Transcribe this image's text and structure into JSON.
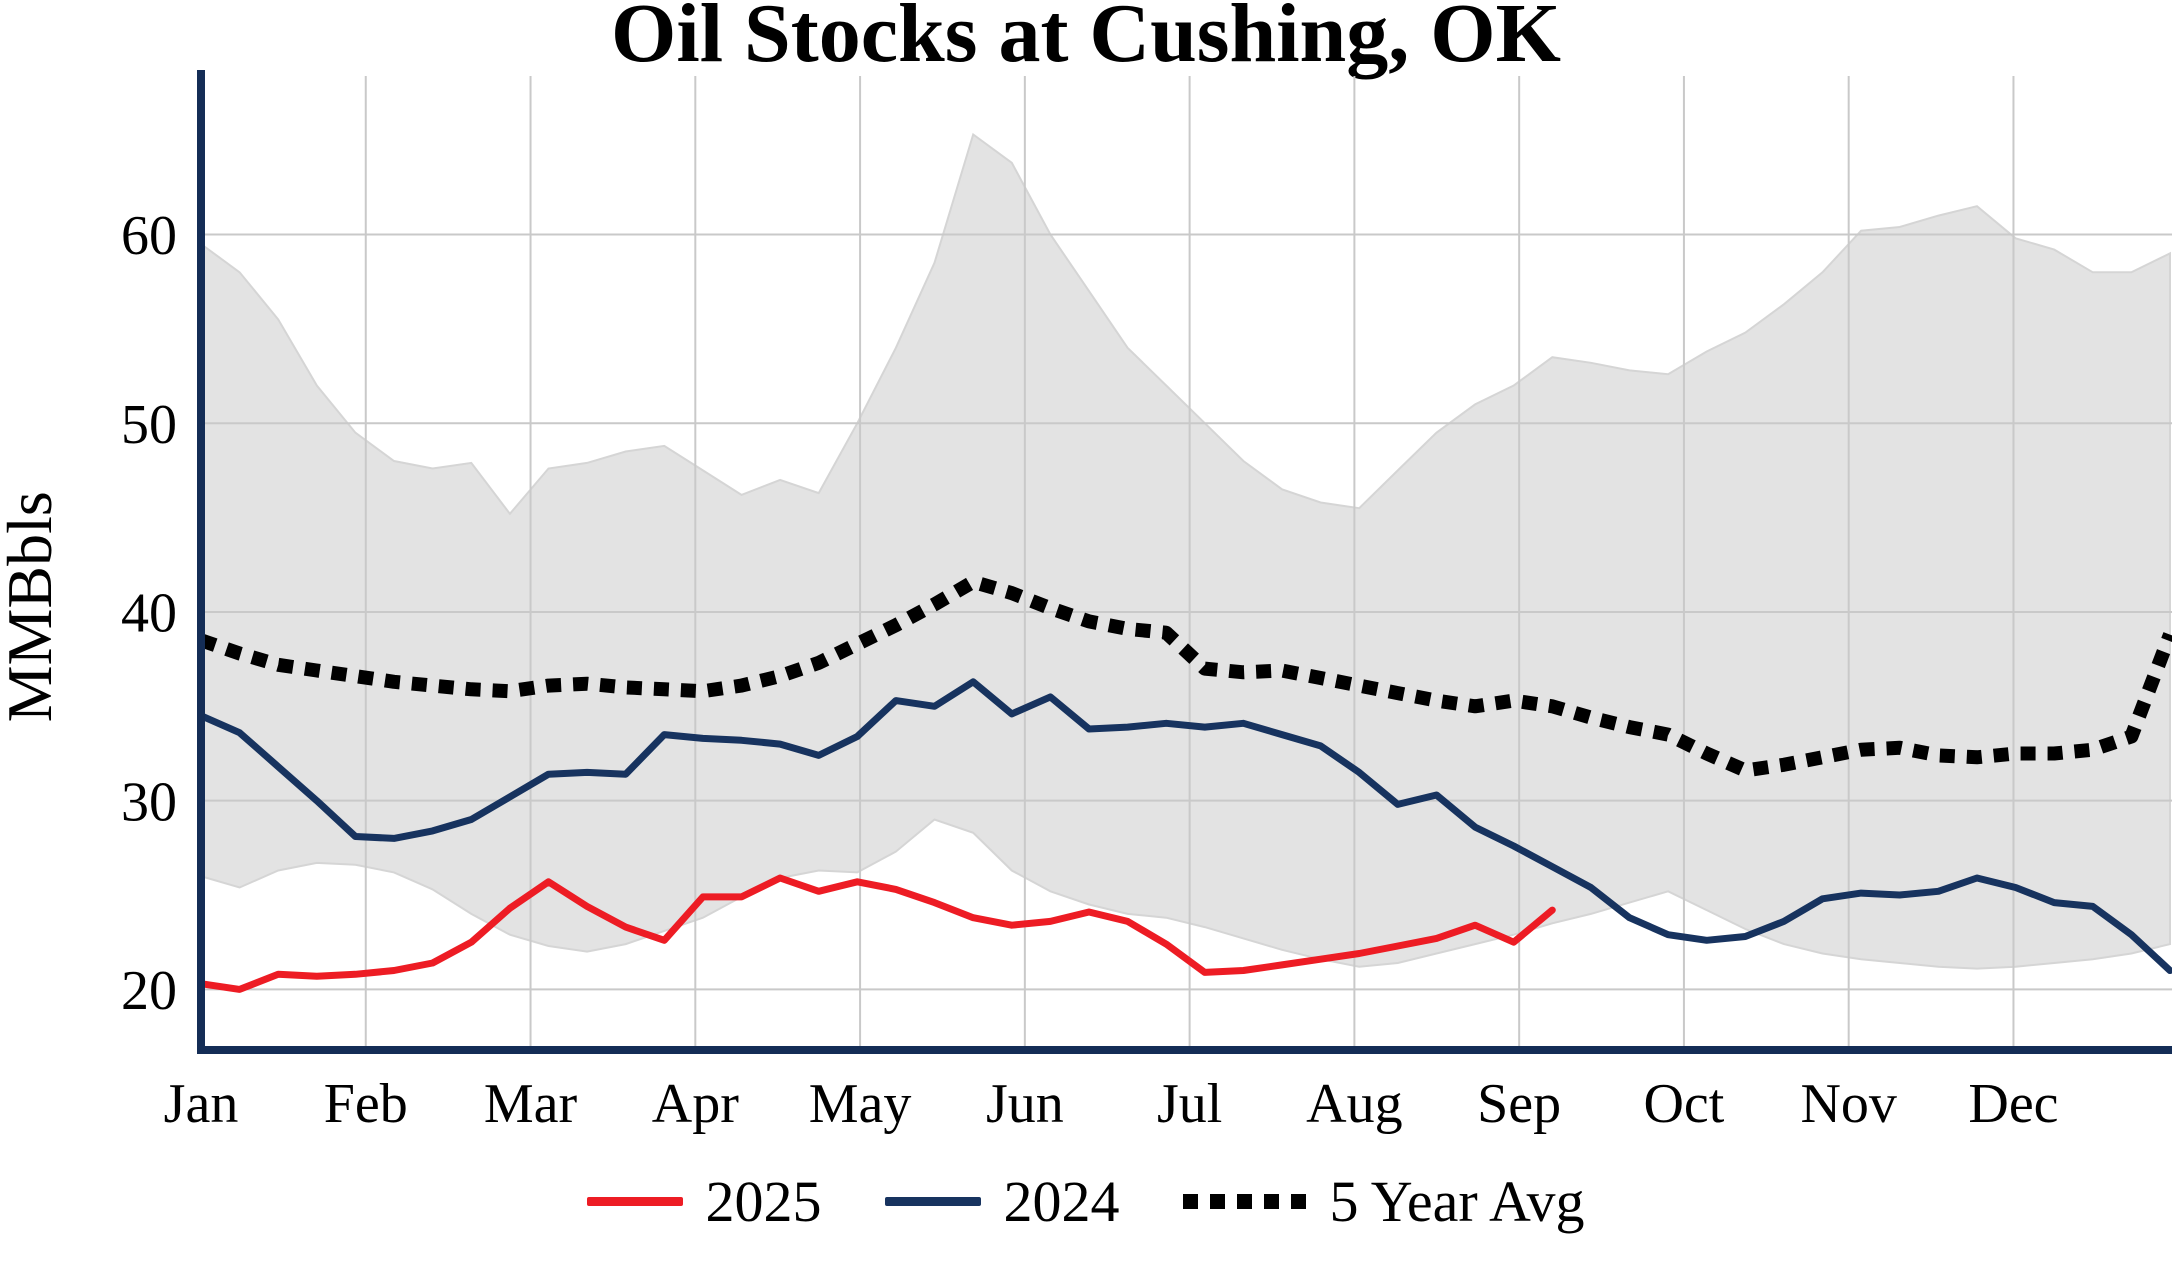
{
  "chart_data": {
    "type": "line",
    "title": "Oil Stocks at Cushing, OK",
    "ylabel": "MMBbls",
    "x_tick_labels": [
      "Jan",
      "Feb",
      "Mar",
      "Apr",
      "May",
      "Jun",
      "Jul",
      "Aug",
      "Sep",
      "Oct",
      "Nov",
      "Dec"
    ],
    "y_ticks": [
      20,
      30,
      40,
      50,
      60
    ],
    "ylim": [
      17,
      68.4
    ],
    "x_domain_months": [
      0,
      11.95
    ],
    "x_step_months": 0.234314,
    "grid": "on",
    "legend_position": "bottom",
    "colors": {
      "grid": "#c9c9c9",
      "axis": "#142d56",
      "band_fill": "#e3e3e3",
      "band_stroke": "#d5d5d5",
      "tick_text": "#000000"
    },
    "band": {
      "name": "5-year range",
      "upper": [
        59.5,
        58.0,
        55.5,
        52.0,
        49.5,
        48.0,
        47.6,
        47.9,
        45.2,
        47.6,
        47.9,
        48.5,
        48.8,
        47.5,
        46.2,
        47.0,
        46.3,
        50.0,
        54.0,
        58.5,
        65.3,
        63.8,
        60.0,
        57.0,
        54.0,
        52.0,
        50.0,
        48.0,
        46.5,
        45.8,
        45.5,
        47.5,
        49.5,
        51.0,
        52.0,
        53.5,
        53.2,
        52.8,
        52.6,
        53.8,
        54.8,
        56.3,
        58.0,
        60.2,
        60.4,
        61.0,
        61.5,
        59.8,
        59.2,
        58.0,
        58.0,
        59.0
      ],
      "lower": [
        26.0,
        25.4,
        26.3,
        26.7,
        26.6,
        26.2,
        25.3,
        24.0,
        22.9,
        22.3,
        22.0,
        22.4,
        23.1,
        23.8,
        24.9,
        25.9,
        26.3,
        26.2,
        27.3,
        29.0,
        28.3,
        26.3,
        25.2,
        24.5,
        24.0,
        23.8,
        23.3,
        22.7,
        22.1,
        21.6,
        21.2,
        21.4,
        21.9,
        22.4,
        22.9,
        23.5,
        24.0,
        24.6,
        25.2,
        24.2,
        23.2,
        22.4,
        21.9,
        21.6,
        21.4,
        21.2,
        21.1,
        21.2,
        21.4,
        21.6,
        21.9,
        22.4
      ]
    },
    "series": [
      {
        "name": "2025",
        "color": "#ed1c24",
        "style": "solid",
        "values": [
          20.3,
          20.0,
          20.8,
          20.7,
          20.8,
          21.0,
          21.4,
          22.5,
          24.3,
          25.7,
          24.4,
          23.3,
          22.6,
          24.9,
          24.9,
          25.9,
          25.2,
          25.7,
          25.3,
          24.6,
          23.8,
          23.4,
          23.6,
          24.1,
          23.6,
          22.4,
          20.9,
          21.0,
          21.3,
          21.6,
          21.9,
          22.3,
          22.7,
          23.4,
          22.5,
          24.2
        ]
      },
      {
        "name": "2024",
        "color": "#17335f",
        "style": "solid",
        "values": [
          34.5,
          33.6,
          31.8,
          30.0,
          28.1,
          28.0,
          28.4,
          29.0,
          30.2,
          31.4,
          31.5,
          31.4,
          33.5,
          33.3,
          33.2,
          33.0,
          32.4,
          33.4,
          35.3,
          35.0,
          36.3,
          34.6,
          35.5,
          33.8,
          33.9,
          34.1,
          33.9,
          34.1,
          33.5,
          32.9,
          31.5,
          29.8,
          30.3,
          28.6,
          27.6,
          26.5,
          25.4,
          23.8,
          22.9,
          22.6,
          22.8,
          23.6,
          24.8,
          25.1,
          25.0,
          25.2,
          25.9,
          25.4,
          24.6,
          24.4,
          22.9,
          21.0
        ]
      },
      {
        "name": "5 Year Avg",
        "color": "#000000",
        "style": "dotted",
        "values": [
          38.5,
          37.8,
          37.2,
          36.9,
          36.6,
          36.3,
          36.1,
          35.9,
          35.8,
          36.1,
          36.2,
          36.0,
          35.9,
          35.8,
          36.1,
          36.6,
          37.3,
          38.3,
          39.3,
          40.4,
          41.6,
          41.0,
          40.2,
          39.5,
          39.1,
          38.9,
          37.0,
          36.8,
          36.9,
          36.5,
          36.1,
          35.7,
          35.3,
          35.0,
          35.3,
          35.0,
          34.4,
          33.9,
          33.5,
          32.5,
          31.6,
          31.9,
          32.3,
          32.7,
          32.8,
          32.4,
          32.3,
          32.5,
          32.5,
          32.7,
          33.4,
          38.8
        ]
      }
    ]
  }
}
